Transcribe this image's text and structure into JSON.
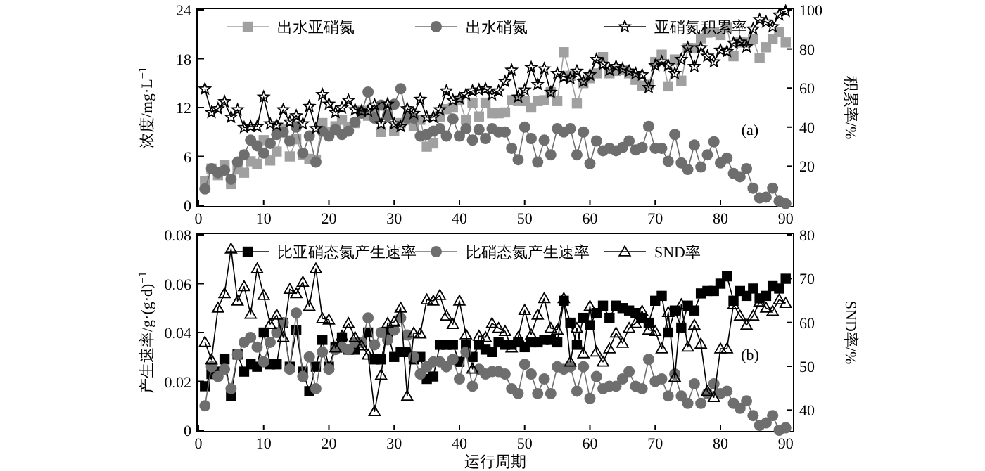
{
  "chart_data": [
    {
      "type": "line",
      "x": [
        1,
        2,
        3,
        4,
        5,
        6,
        7,
        8,
        9,
        10,
        11,
        12,
        13,
        14,
        15,
        16,
        17,
        18,
        19,
        20,
        21,
        22,
        23,
        24,
        25,
        26,
        27,
        28,
        29,
        30,
        31,
        32,
        33,
        34,
        35,
        36,
        37,
        38,
        39,
        40,
        41,
        42,
        43,
        44,
        45,
        46,
        47,
        48,
        49,
        50,
        51,
        52,
        53,
        54,
        55,
        56,
        57,
        58,
        59,
        60,
        61,
        62,
        63,
        64,
        65,
        66,
        67,
        68,
        69,
        70,
        71,
        72,
        73,
        74,
        75,
        76,
        77,
        78,
        79,
        80,
        81,
        82,
        83,
        84,
        85,
        86,
        87,
        88,
        89,
        90
      ],
      "ylabel": "浓度/mg·L$^{−1}$",
      "y2label": "积累率/%",
      "annotations": [
        "(a)"
      ],
      "xlim": [
        0,
        91
      ],
      "xticks": [
        0,
        10,
        20,
        30,
        40,
        50,
        60,
        70,
        80,
        90
      ],
      "ylim": [
        0,
        24
      ],
      "yticks": [
        0,
        6,
        12,
        18,
        24
      ],
      "y2lim": [
        0,
        100
      ],
      "y2ticks": [
        20,
        40,
        60,
        80,
        100
      ],
      "legend": "top",
      "grid": false,
      "line_style": "solid",
      "series": [
        {
          "name": "出水亚硝氮",
          "color": "#a0a0a0",
          "marker": "square",
          "values": [
            3.0,
            4.5,
            3.7,
            4.9,
            2.6,
            4.4,
            4.0,
            5.4,
            5.1,
            8.0,
            5.5,
            6.6,
            9.3,
            6.0,
            8.1,
            6.2,
            5.7,
            5.6,
            10.1,
            9.0,
            9.7,
            10.5,
            9.6,
            10.1,
            11.6,
            11.0,
            11.2,
            9.0,
            11.2,
            9.1,
            10.1,
            10.5,
            9.7,
            10.5,
            7.2,
            7.6,
            10.9,
            11.8,
            12.0,
            12.9,
            10.5,
            12.6,
            10.9,
            12.6,
            11.3,
            11.3,
            11.4,
            12.9,
            12.8,
            12.8,
            12.0,
            12.8,
            12.9,
            13.9,
            12.8,
            18.8,
            15.9,
            12.5,
            15.0,
            15.6,
            16.2,
            18.2,
            16.2,
            16.5,
            16.6,
            16.2,
            15.4,
            14.7,
            14.8,
            17.6,
            18.5,
            14.6,
            17.9,
            15.3,
            19.3,
            19.3,
            20.5,
            21.2,
            21.3,
            20.9,
            21.8,
            18.3,
            20.0,
            20.0,
            20.4,
            18.1,
            19.4,
            20.4,
            21.3,
            20.0
          ]
        },
        {
          "name": "出水硝氮",
          "color": "#6e6e6e",
          "marker": "circle",
          "values": [
            2.0,
            4.5,
            4.0,
            4.3,
            3.2,
            5.3,
            6.2,
            8.0,
            7.3,
            6.4,
            7.6,
            8.7,
            9.0,
            7.9,
            9.6,
            6.4,
            8.5,
            5.3,
            9.1,
            8.5,
            9.3,
            8.7,
            9.1,
            10.2,
            11.3,
            13.9,
            10.7,
            12.3,
            11.0,
            12.4,
            14.3,
            10.7,
            10.7,
            8.5,
            8.7,
            9.1,
            9.4,
            8.5,
            10.6,
            8.5,
            9.4,
            8.0,
            9.3,
            8.2,
            9.4,
            9.0,
            9.0,
            7.0,
            5.6,
            9.6,
            8.2,
            5.3,
            8.0,
            6.2,
            9.4,
            9.0,
            9.4,
            6.2,
            9.0,
            5.1,
            7.9,
            6.7,
            7.0,
            6.7,
            7.1,
            7.9,
            6.8,
            7.1,
            9.7,
            7.0,
            7.0,
            5.4,
            8.7,
            5.2,
            4.4,
            7.4,
            4.7,
            6.2,
            7.8,
            5.2,
            5.8,
            3.9,
            3.5,
            4.5,
            2.1,
            0.9,
            1.0,
            2.1,
            0.5,
            0.2
          ]
        },
        {
          "name": "亚硝氮积累率",
          "color": "#000000",
          "marker": "star",
          "axis": "y2",
          "values": [
            59.5,
            47.5,
            49.4,
            53.0,
            45.1,
            48.9,
            39.8,
            40.3,
            40.3,
            55.4,
            41.7,
            41.0,
            48.9,
            42.7,
            45.8,
            41.7,
            50.6,
            39.3,
            56.6,
            51.8,
            47.5,
            49.9,
            53.7,
            48.9,
            48.2,
            48.2,
            51.3,
            41.7,
            51.8,
            41.7,
            40.3,
            49.4,
            47.0,
            54.2,
            45.1,
            45.1,
            48.9,
            58.5,
            53.7,
            54.7,
            56.6,
            58.5,
            59.0,
            59.5,
            56.6,
            58.5,
            63.3,
            69.1,
            55.4,
            59.0,
            70.5,
            61.9,
            69.8,
            57.8,
            67.4,
            65.7,
            65.0,
            68.6,
            63.3,
            66.7,
            74.6,
            72.2,
            69.1,
            71.0,
            69.8,
            68.6,
            67.4,
            66.7,
            60.2,
            71.5,
            73.4,
            71.5,
            67.4,
            74.6,
            80.6,
            71.0,
            80.6,
            76.3,
            73.4,
            79.4,
            78.7,
            83.0,
            83.5,
            81.1,
            90.2,
            95.0,
            93.8,
            91.4,
            97.4,
            99.3
          ]
        }
      ]
    },
    {
      "type": "line",
      "x": [
        1,
        2,
        3,
        4,
        5,
        6,
        7,
        8,
        9,
        10,
        11,
        12,
        13,
        14,
        15,
        16,
        17,
        18,
        19,
        20,
        21,
        22,
        23,
        24,
        25,
        26,
        27,
        28,
        29,
        30,
        31,
        32,
        33,
        34,
        35,
        36,
        37,
        38,
        39,
        40,
        41,
        42,
        43,
        44,
        45,
        46,
        47,
        48,
        49,
        50,
        51,
        52,
        53,
        54,
        55,
        56,
        57,
        58,
        59,
        60,
        61,
        62,
        63,
        64,
        65,
        66,
        67,
        68,
        69,
        70,
        71,
        72,
        73,
        74,
        75,
        76,
        77,
        78,
        79,
        80,
        81,
        82,
        83,
        84,
        85,
        86,
        87,
        88,
        89,
        90
      ],
      "xlabel": "运行周期",
      "ylabel": "产生速率/g·(g·d)$^{−1}$",
      "y2label": "SND率/%",
      "annotations": [
        "(b)"
      ],
      "xlim": [
        0,
        91
      ],
      "xticks": [
        0,
        10,
        20,
        30,
        40,
        50,
        60,
        70,
        80,
        90
      ],
      "ylim": [
        0,
        0.08
      ],
      "yticks": [
        0,
        0.02,
        0.04,
        0.06,
        0.08
      ],
      "y2lim": [
        35.4,
        80
      ],
      "y2ticks": [
        40,
        50,
        60,
        70,
        80
      ],
      "legend": "top",
      "grid": false,
      "line_style": "solid",
      "series": [
        {
          "name": "比亚硝态氮产生速率",
          "color": "#000000",
          "marker": "square",
          "values": [
            0.018,
            0.023,
            0.024,
            0.029,
            0.014,
            0.031,
            0.024,
            0.027,
            0.026,
            0.04,
            0.027,
            0.027,
            0.044,
            0.026,
            0.041,
            0.024,
            0.016,
            0.026,
            0.037,
            0.026,
            0.034,
            0.038,
            0.033,
            0.033,
            0.036,
            0.04,
            0.029,
            0.029,
            0.04,
            0.03,
            0.032,
            0.032,
            0.029,
            0.03,
            0.021,
            0.022,
            0.035,
            0.035,
            0.035,
            0.028,
            0.035,
            0.03,
            0.035,
            0.033,
            0.032,
            0.036,
            0.035,
            0.035,
            0.036,
            0.034,
            0.036,
            0.036,
            0.037,
            0.037,
            0.036,
            0.053,
            0.044,
            0.035,
            0.046,
            0.043,
            0.048,
            0.051,
            0.046,
            0.051,
            0.05,
            0.049,
            0.048,
            0.046,
            0.044,
            0.053,
            0.055,
            0.04,
            0.049,
            0.042,
            0.051,
            0.049,
            0.056,
            0.057,
            0.057,
            0.06,
            0.063,
            0.053,
            0.057,
            0.055,
            0.058,
            0.054,
            0.055,
            0.059,
            0.058,
            0.062
          ]
        },
        {
          "name": "比硝态氮产生速率",
          "color": "#6e6e6e",
          "marker": "circle",
          "values": [
            0.01,
            0.026,
            0.022,
            0.025,
            0.017,
            0.031,
            0.036,
            0.038,
            0.034,
            0.028,
            0.036,
            0.04,
            0.044,
            0.025,
            0.048,
            0.022,
            0.03,
            0.017,
            0.032,
            0.025,
            0.033,
            0.034,
            0.033,
            0.036,
            0.036,
            0.046,
            0.035,
            0.04,
            0.037,
            0.041,
            0.046,
            0.039,
            0.03,
            0.023,
            0.026,
            0.028,
            0.028,
            0.026,
            0.029,
            0.021,
            0.032,
            0.018,
            0.025,
            0.023,
            0.024,
            0.024,
            0.023,
            0.017,
            0.015,
            0.027,
            0.023,
            0.015,
            0.021,
            0.015,
            0.026,
            0.025,
            0.026,
            0.016,
            0.026,
            0.013,
            0.022,
            0.017,
            0.018,
            0.018,
            0.021,
            0.024,
            0.018,
            0.017,
            0.029,
            0.02,
            0.021,
            0.014,
            0.023,
            0.014,
            0.011,
            0.019,
            0.011,
            0.015,
            0.019,
            0.015,
            0.016,
            0.011,
            0.009,
            0.012,
            0.006,
            0.002,
            0.003,
            0.006,
            0.0,
            0.001
          ]
        },
        {
          "name": "SND率",
          "color": "#000000",
          "marker": "triangle",
          "axis": "y2",
          "values": [
            55.5,
            51.5,
            63.3,
            66.6,
            76.8,
            64.9,
            68.2,
            61.9,
            72.3,
            66.2,
            59.6,
            61.7,
            56.6,
            67.6,
            66.6,
            69.2,
            63.7,
            72.3,
            60.9,
            60.6,
            54.2,
            56.9,
            59.8,
            56.6,
            54.7,
            52.6,
            39.7,
            48.0,
            59.8,
            60.1,
            63.3,
            43.2,
            57.6,
            57.4,
            65.2,
            64.9,
            66.2,
            61.5,
            59.6,
            64.9,
            57.2,
            49.4,
            56.9,
            56.6,
            59.8,
            58.7,
            58.0,
            54.2,
            56.6,
            62.8,
            57.2,
            61.7,
            65.5,
            58.7,
            58.3,
            65.5,
            51.0,
            58.7,
            52.9,
            63.7,
            53.3,
            51.0,
            54.0,
            57.6,
            55.3,
            58.7,
            59.8,
            62.6,
            58.3,
            58.0,
            54.0,
            62.3,
            47.5,
            64.1,
            54.4,
            59.4,
            55.1,
            44.3,
            42.9,
            54.0,
            54.0,
            64.1,
            61.5,
            59.4,
            61.5,
            64.7,
            63.3,
            62.6,
            65.2,
            64.4
          ]
        }
      ]
    }
  ]
}
